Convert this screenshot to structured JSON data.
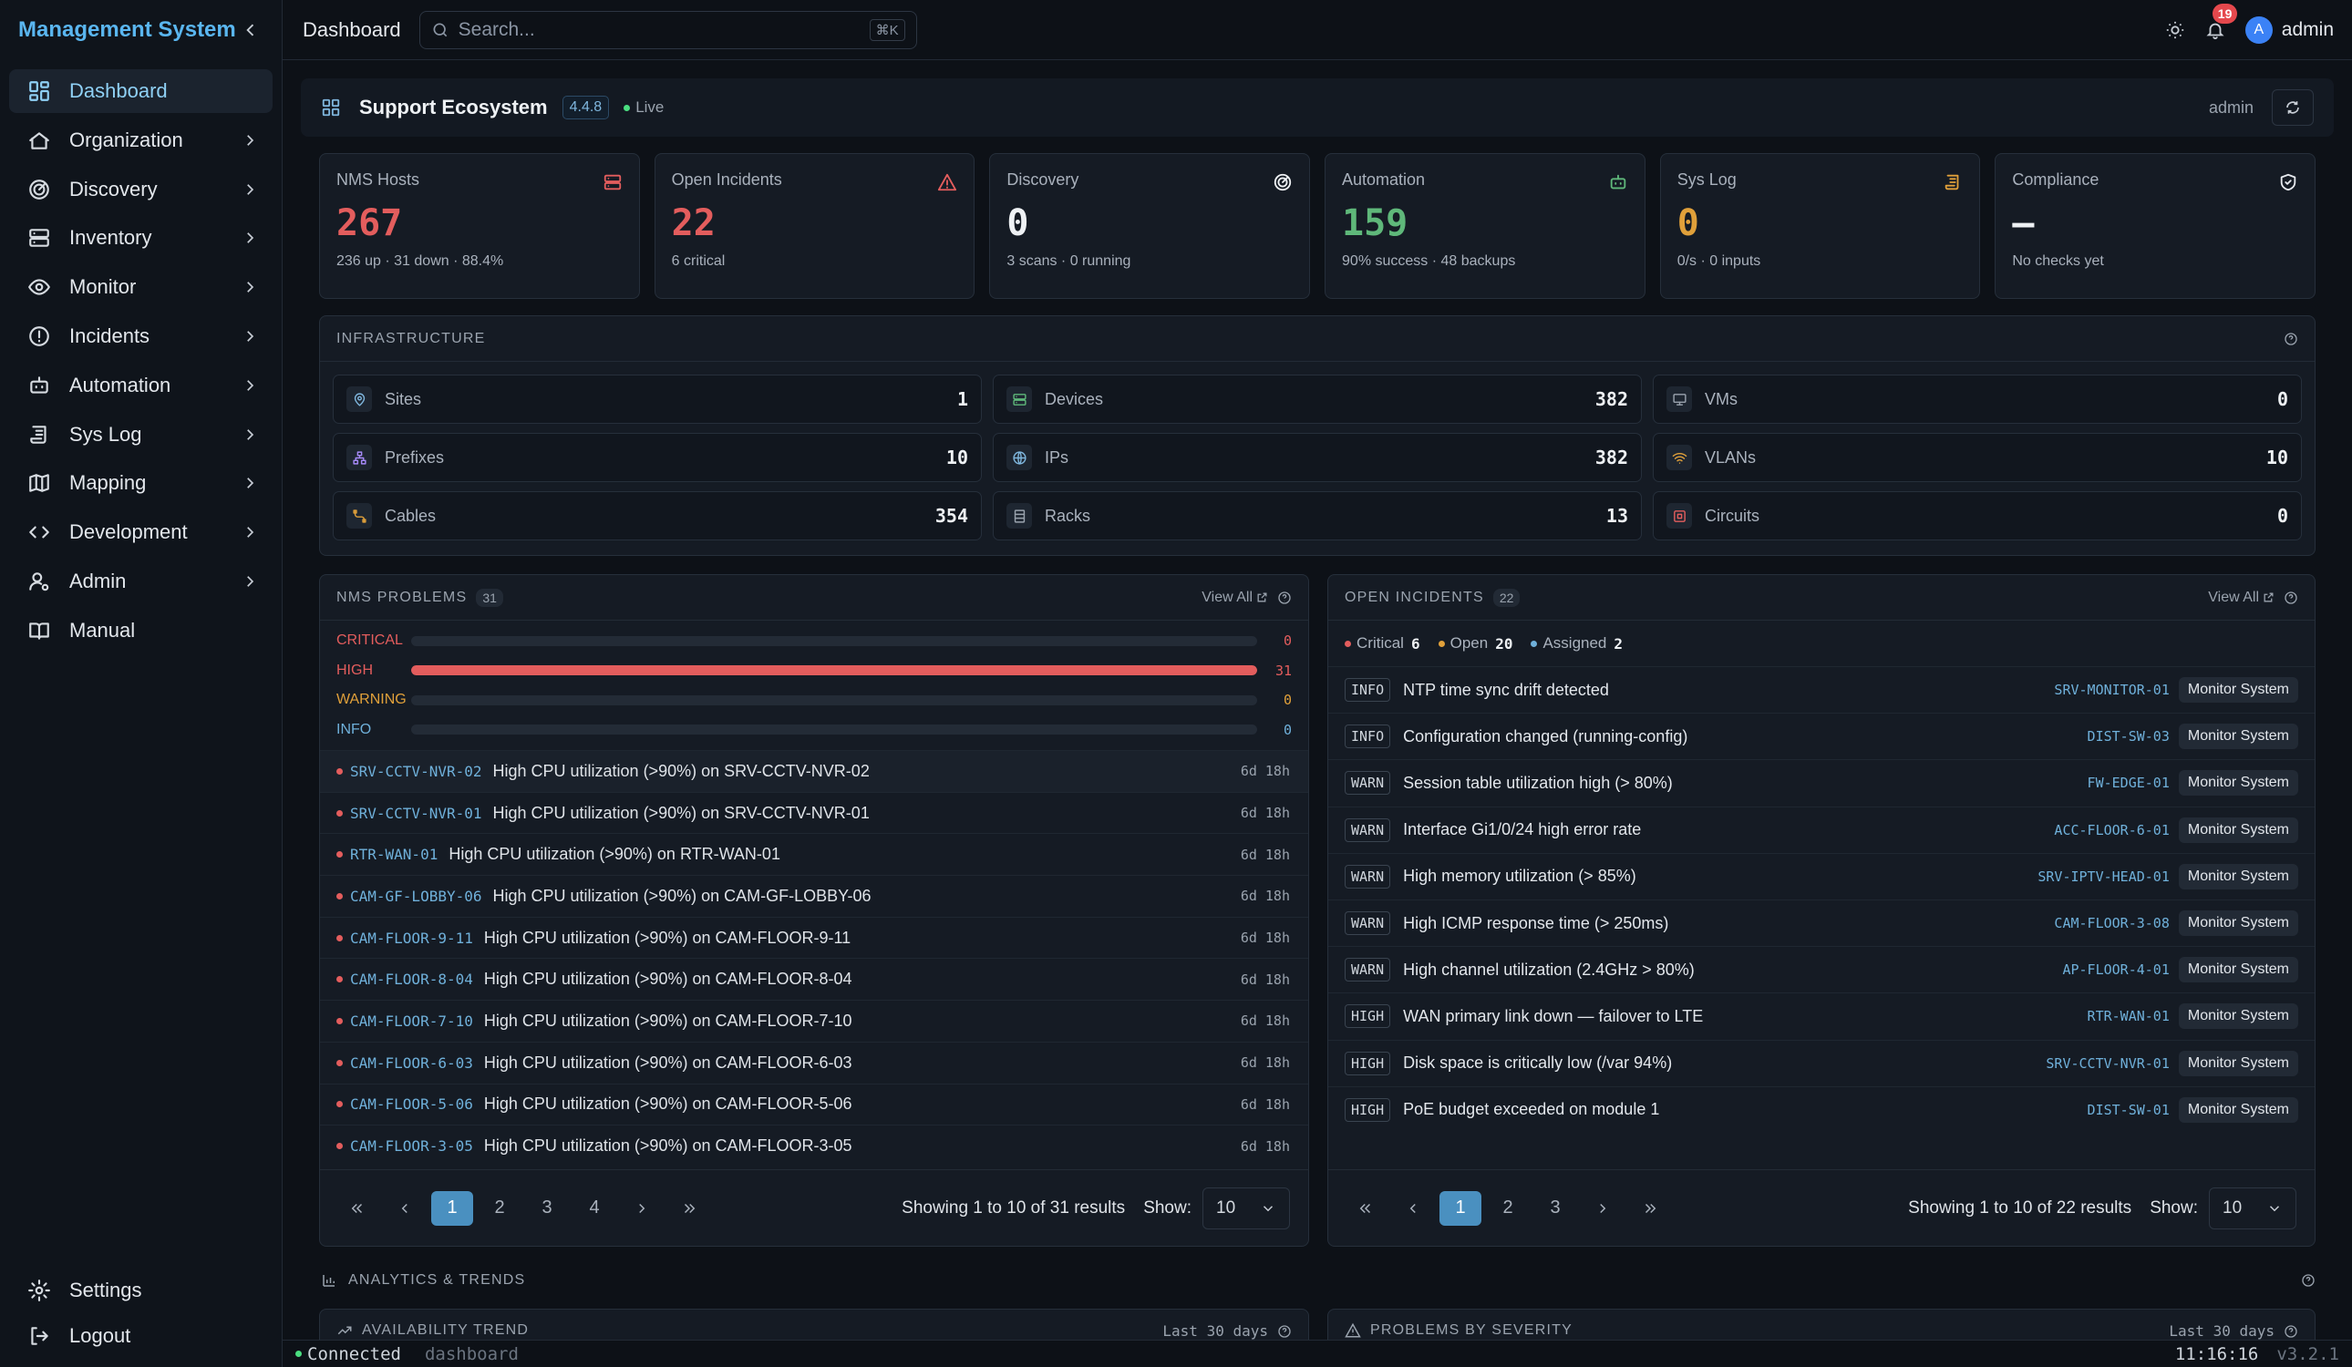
{
  "app": {
    "title": "Management System"
  },
  "sidebar": {
    "items": [
      {
        "label": "Dashboard",
        "icon": "dashboard-icon"
      },
      {
        "label": "Organization",
        "icon": "building-icon"
      },
      {
        "label": "Discovery",
        "icon": "radar-icon"
      },
      {
        "label": "Inventory",
        "icon": "server-icon"
      },
      {
        "label": "Monitor",
        "icon": "eye-icon"
      },
      {
        "label": "Incidents",
        "icon": "alert-circle-icon"
      },
      {
        "label": "Automation",
        "icon": "robot-icon"
      },
      {
        "label": "Sys Log",
        "icon": "scroll-icon"
      },
      {
        "label": "Mapping",
        "icon": "map-icon"
      },
      {
        "label": "Development",
        "icon": "code-icon"
      },
      {
        "label": "Admin",
        "icon": "user-cog-icon"
      },
      {
        "label": "Manual",
        "icon": "book-icon"
      }
    ],
    "footer": [
      {
        "label": "Settings",
        "icon": "gear-icon"
      },
      {
        "label": "Logout",
        "icon": "logout-icon"
      }
    ]
  },
  "topbar": {
    "title": "Dashboard",
    "search_placeholder": "Search...",
    "search_shortcut": "⌘K",
    "notifications": "19",
    "avatar_letter": "A",
    "user": "admin"
  },
  "ecosystem": {
    "title": "Support Ecosystem",
    "version": "4.4.8",
    "status": "Live",
    "user": "admin"
  },
  "stats": [
    {
      "title": "NMS Hosts",
      "value": "267",
      "sub": "236 up · 31 down · 88.4%",
      "color": "#e35d5d",
      "icon": "server-icon"
    },
    {
      "title": "Open Incidents",
      "value": "22",
      "sub": "6 critical",
      "color": "#e35d5d",
      "icon": "warning-triangle-icon"
    },
    {
      "title": "Discovery",
      "value": "0",
      "sub": "3 scans · 0 running",
      "color": "#eef1f4",
      "icon": "radar-icon"
    },
    {
      "title": "Automation",
      "value": "159",
      "sub": "90% success · 48 backups",
      "color": "#5fb87a",
      "icon": "robot-icon"
    },
    {
      "title": "Sys Log",
      "value": "0",
      "sub": "0/s · 0 inputs",
      "color": "#e0a03a",
      "icon": "scroll-icon"
    },
    {
      "title": "Compliance",
      "value": "—",
      "sub": "No checks yet",
      "color": "#eef1f4",
      "icon": "shield-check-icon"
    }
  ],
  "infrastructure": {
    "title": "INFRASTRUCTURE",
    "items": [
      {
        "label": "Sites",
        "value": "1",
        "icon": "map-pin-icon",
        "color": "#7fb6dd"
      },
      {
        "label": "Devices",
        "value": "382",
        "icon": "server-icon",
        "color": "#5fb87a"
      },
      {
        "label": "VMs",
        "value": "0",
        "icon": "monitor-icon",
        "color": "#9aa3ae"
      },
      {
        "label": "Prefixes",
        "value": "10",
        "icon": "network-icon",
        "color": "#a78bfa"
      },
      {
        "label": "IPs",
        "value": "382",
        "icon": "globe-icon",
        "color": "#7fb6dd"
      },
      {
        "label": "VLANs",
        "value": "10",
        "icon": "wifi-icon",
        "color": "#e0a03a"
      },
      {
        "label": "Cables",
        "value": "354",
        "icon": "cable-icon",
        "color": "#e0a03a"
      },
      {
        "label": "Racks",
        "value": "13",
        "icon": "rack-icon",
        "color": "#9aa3ae"
      },
      {
        "label": "Circuits",
        "value": "0",
        "icon": "circuit-icon",
        "color": "#e35d5d"
      }
    ]
  },
  "nms": {
    "title": "NMS PROBLEMS",
    "count": "31",
    "view_all": "View All",
    "severity": [
      {
        "label": "CRITICAL",
        "value": "0",
        "fraction": 0,
        "color": "#e35d5d"
      },
      {
        "label": "HIGH",
        "value": "31",
        "fraction": 1,
        "color": "#e35d5d"
      },
      {
        "label": "WARNING",
        "value": "0",
        "fraction": 0,
        "color": "#e0a03a"
      },
      {
        "label": "INFO",
        "value": "0",
        "fraction": 0,
        "color": "#6fb0da"
      }
    ],
    "problems": [
      {
        "host": "SRV-CCTV-NVR-02",
        "msg": "High CPU utilization (>90%) on SRV-CCTV-NVR-02",
        "age": "6d 18h"
      },
      {
        "host": "SRV-CCTV-NVR-01",
        "msg": "High CPU utilization (>90%) on SRV-CCTV-NVR-01",
        "age": "6d 18h"
      },
      {
        "host": "RTR-WAN-01",
        "msg": "High CPU utilization (>90%) on RTR-WAN-01",
        "age": "6d 18h"
      },
      {
        "host": "CAM-GF-LOBBY-06",
        "msg": "High CPU utilization (>90%) on CAM-GF-LOBBY-06",
        "age": "6d 18h"
      },
      {
        "host": "CAM-FLOOR-9-11",
        "msg": "High CPU utilization (>90%) on CAM-FLOOR-9-11",
        "age": "6d 18h"
      },
      {
        "host": "CAM-FLOOR-8-04",
        "msg": "High CPU utilization (>90%) on CAM-FLOOR-8-04",
        "age": "6d 18h"
      },
      {
        "host": "CAM-FLOOR-7-10",
        "msg": "High CPU utilization (>90%) on CAM-FLOOR-7-10",
        "age": "6d 18h"
      },
      {
        "host": "CAM-FLOOR-6-03",
        "msg": "High CPU utilization (>90%) on CAM-FLOOR-6-03",
        "age": "6d 18h"
      },
      {
        "host": "CAM-FLOOR-5-06",
        "msg": "High CPU utilization (>90%) on CAM-FLOOR-5-06",
        "age": "6d 18h"
      },
      {
        "host": "CAM-FLOOR-3-05",
        "msg": "High CPU utilization (>90%) on CAM-FLOOR-3-05",
        "age": "6d 18h"
      }
    ],
    "pages": [
      "1",
      "2",
      "3",
      "4"
    ],
    "showing": "Showing 1 to 10 of 31 results",
    "show_label": "Show:",
    "show_value": "10"
  },
  "incidents": {
    "title": "OPEN INCIDENTS",
    "count": "22",
    "view_all": "View All",
    "summary": [
      {
        "label": "Critical",
        "value": "6",
        "color": "#e35d5d"
      },
      {
        "label": "Open",
        "value": "20",
        "color": "#e0a03a"
      },
      {
        "label": "Assigned",
        "value": "2",
        "color": "#6fb0da"
      }
    ],
    "rows": [
      {
        "sev": "INFO",
        "msg": "NTP time sync drift detected",
        "host": "SRV-MONITOR-01",
        "source": "Monitor System"
      },
      {
        "sev": "INFO",
        "msg": "Configuration changed (running-config)",
        "host": "DIST-SW-03",
        "source": "Monitor System"
      },
      {
        "sev": "WARN",
        "msg": "Session table utilization high (> 80%)",
        "host": "FW-EDGE-01",
        "source": "Monitor System"
      },
      {
        "sev": "WARN",
        "msg": "Interface Gi1/0/24 high error rate",
        "host": "ACC-FLOOR-6-01",
        "source": "Monitor System"
      },
      {
        "sev": "WARN",
        "msg": "High memory utilization (> 85%)",
        "host": "SRV-IPTV-HEAD-01",
        "source": "Monitor System"
      },
      {
        "sev": "WARN",
        "msg": "High ICMP response time (> 250ms)",
        "host": "CAM-FLOOR-3-08",
        "source": "Monitor System"
      },
      {
        "sev": "WARN",
        "msg": "High channel utilization (2.4GHz > 80%)",
        "host": "AP-FLOOR-4-01",
        "source": "Monitor System"
      },
      {
        "sev": "HIGH",
        "msg": "WAN primary link down — failover to LTE",
        "host": "RTR-WAN-01",
        "source": "Monitor System"
      },
      {
        "sev": "HIGH",
        "msg": "Disk space is critically low (/var 94%)",
        "host": "SRV-CCTV-NVR-01",
        "source": "Monitor System"
      },
      {
        "sev": "HIGH",
        "msg": "PoE budget exceeded on module 1",
        "host": "DIST-SW-01",
        "source": "Monitor System"
      }
    ],
    "pages": [
      "1",
      "2",
      "3"
    ],
    "showing": "Showing 1 to 10 of 22 results",
    "show_label": "Show:",
    "show_value": "10"
  },
  "analytics": {
    "title": "ANALYTICS & TRENDS",
    "cards": [
      {
        "title": "AVAILABILITY TREND",
        "range": "Last 30 days"
      },
      {
        "title": "PROBLEMS BY SEVERITY",
        "range": "Last 30 days"
      }
    ]
  },
  "statusbar": {
    "status": "Connected",
    "page": "dashboard",
    "time": "11:16:16",
    "version": "v3.2.1"
  }
}
